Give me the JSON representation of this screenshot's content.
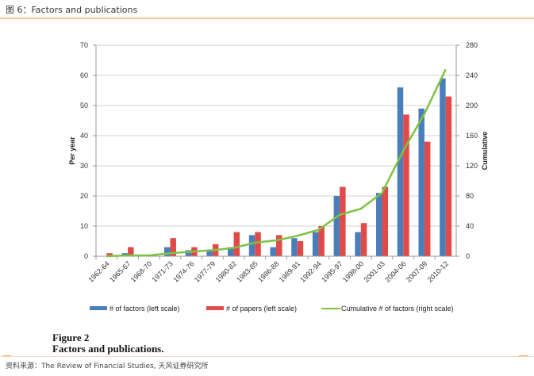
{
  "header": {
    "title": "图 6：Factors and publications"
  },
  "caption": {
    "label": "Figure 2",
    "title": "Factors and publications."
  },
  "source": {
    "text": "资料来源：The Review of Financial Studies, 天风证券研究所"
  },
  "colors": {
    "factors": "#4a7ebb",
    "papers": "#e04b4a",
    "cumulative": "#7dc242",
    "grid": "#d0d0d0",
    "header_rule": "#f3c9a0"
  },
  "chart_data": {
    "type": "bar",
    "title": "Factors and publications",
    "categories": [
      "1962-64",
      "1965-67",
      "1968-70",
      "1971-73",
      "1974-76",
      "1977-79",
      "1980-82",
      "1983-85",
      "1986-88",
      "1989-91",
      "1992-94",
      "1995-97",
      "1998-00",
      "2001-03",
      "2004-06",
      "2007-09",
      "2010-12"
    ],
    "series": [
      {
        "name": "# of factors (left scale)",
        "type": "bar",
        "axis": "left",
        "values": [
          0,
          1,
          0,
          3,
          2,
          2,
          3,
          7,
          3,
          6,
          8,
          20,
          8,
          21,
          56,
          49,
          59
        ]
      },
      {
        "name": "# of papers (left scale)",
        "type": "bar",
        "axis": "left",
        "values": [
          1,
          3,
          0,
          6,
          3,
          4,
          8,
          8,
          7,
          5,
          10,
          23,
          11,
          23,
          47,
          38,
          53
        ]
      },
      {
        "name": "Cumulative # of factors (right scale)",
        "type": "line",
        "axis": "right",
        "values": [
          0,
          1,
          1,
          4,
          6,
          8,
          11,
          18,
          21,
          27,
          35,
          55,
          63,
          84,
          140,
          189,
          248
        ]
      }
    ],
    "ylabel": "Per year",
    "y2label": "Cumulative",
    "ylim": [
      0,
      70
    ],
    "y2lim": [
      0,
      280
    ],
    "yticks": [
      0,
      10,
      20,
      30,
      40,
      50,
      60,
      70
    ],
    "y2ticks": [
      0,
      40,
      80,
      120,
      160,
      200,
      240,
      280
    ],
    "grid": true,
    "legend": "bottom"
  }
}
